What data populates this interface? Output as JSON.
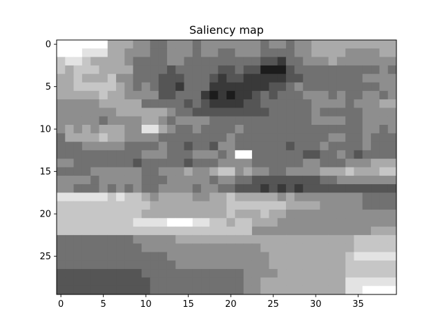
{
  "chart_data": {
    "type": "heatmap",
    "title": "Saliency map",
    "colormap": "gray",
    "grid": false,
    "x_ticks": [
      0,
      5,
      10,
      15,
      20,
      25,
      30,
      35
    ],
    "y_ticks": [
      0,
      5,
      10,
      15,
      20,
      25
    ],
    "xlim": [
      -0.5,
      39.5
    ],
    "ylim": [
      29.5,
      -0.5
    ],
    "n_cols": 40,
    "n_rows": 30,
    "values_0_9": [
      "9999996665544555455555554554556666666666",
      "9998886655544555455445554444556666555566",
      "7887666654444554444444443324455565555555",
      "7677766664444344444334331113444444444454",
      "6676667554443334443233222223344444445555",
      "6677777654543324442222222334544444444455",
      "6666676655553344421212234344455545445545",
      "5555566666444443432222334444445555455566",
      "5555555666666544333333333444445444445555",
      "5555545555665455554444444444445555445555"
    ],
    "values_10_19": [
      "5656566655886544544445444444444444445545",
      "4666676655554444444454444444444455445444",
      "4445555544445443443554444443444544445444",
      "4444444444555444555459944444433445434444",
      "5544444443444443444555544444455444555666",
      "4444555555445556556775655445555666766677",
      "5555455555444555554554433333333445555555",
      "5544454545445555455443332323233333333333",
      "8888887877656666556676666656555555554444",
      "7777777777766666666677777776666555554444"
    ],
    "values_20_29": [
      "7777777777666666666676667665555555555555",
      "7777777778888999887767766655555555555555",
      "7777777777777777777777755555555555555666",
      "4444444445555566666666666666666666677777",
      "4444444444555555555555556666666666677777",
      "4444444444444555555555555666666666788888",
      "4444444444444455555555555666666666777777",
      "3333333333444444444444555566666666777777",
      "3333333333344444444444556666666666888888",
      "3333333333344444444444556666666666889999"
    ]
  }
}
